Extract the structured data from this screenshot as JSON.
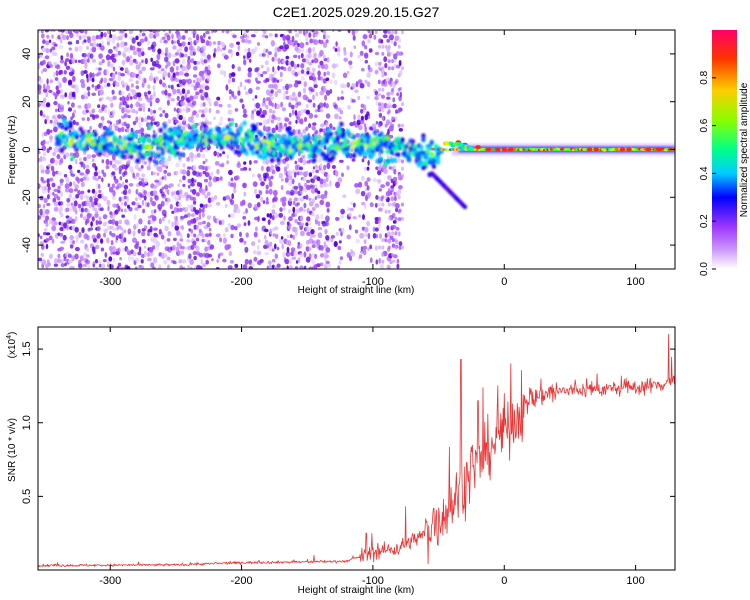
{
  "figure_title": "C2E1.2025.029.20.15.G27",
  "chart_data": [
    {
      "type": "heatmap",
      "xlabel": "Height of straight line (km)",
      "ylabel": "Frequency (Hz)",
      "xlim": [
        -355,
        130
      ],
      "ylim": [
        -50,
        50
      ],
      "xticks": [
        -300,
        -200,
        -100,
        0,
        100
      ],
      "yticks": [
        -40,
        -20,
        0,
        20,
        40
      ],
      "colorbar": {
        "label": "Normalized spectral amplitude",
        "range": [
          0,
          1
        ],
        "ticks": [
          0.0,
          0.2,
          0.4,
          0.6,
          0.8
        ],
        "colors": [
          "#ffffff",
          "#9933ff",
          "#5500dd",
          "#0000ff",
          "#00ccff",
          "#00ff66",
          "#ccff00",
          "#ffcc00",
          "#ff3300",
          "#ff0066"
        ]
      },
      "features": {
        "central_line_frequency_hz": 0,
        "line_onset_height_km": -40,
        "noise_region_end_km": -80,
        "descending_branch": {
          "from": [
            -55,
            -10
          ],
          "to": [
            -30,
            -24
          ]
        }
      }
    },
    {
      "type": "line",
      "xlabel": "Height of straight line (km)",
      "ylabel": "SNR (10 * v/v)",
      "yscale_label": "(x10",
      "yscale_exp": "4",
      "xlim": [
        -355,
        130
      ],
      "ylim": [
        0,
        16500
      ],
      "xticks": [
        -300,
        -200,
        -100,
        0,
        100
      ],
      "yticks": [
        5000,
        10000,
        15000
      ],
      "ytick_labels": [
        "0.5",
        "1.0",
        "1.5"
      ],
      "color": "#ee3333",
      "profile": [
        [
          -355,
          300
        ],
        [
          -250,
          350
        ],
        [
          -200,
          500
        ],
        [
          -150,
          550
        ],
        [
          -120,
          600
        ],
        [
          -100,
          1200
        ],
        [
          -80,
          1500
        ],
        [
          -60,
          2500
        ],
        [
          -50,
          3500
        ],
        [
          -40,
          4500
        ],
        [
          -30,
          6000
        ],
        [
          -20,
          7000
        ],
        [
          -10,
          8500
        ],
        [
          0,
          9500
        ],
        [
          10,
          10500
        ],
        [
          20,
          11500
        ],
        [
          30,
          12000
        ],
        [
          50,
          12200
        ],
        [
          80,
          12300
        ],
        [
          100,
          12400
        ],
        [
          120,
          12600
        ],
        [
          130,
          13000
        ]
      ],
      "spikes": [
        [
          -145,
          1000
        ],
        [
          -105,
          2500
        ],
        [
          -75,
          4300
        ],
        [
          -33,
          14300
        ],
        [
          -20,
          11500
        ],
        [
          -5,
          12500
        ],
        [
          5,
          14000
        ],
        [
          125,
          16000
        ]
      ]
    }
  ]
}
